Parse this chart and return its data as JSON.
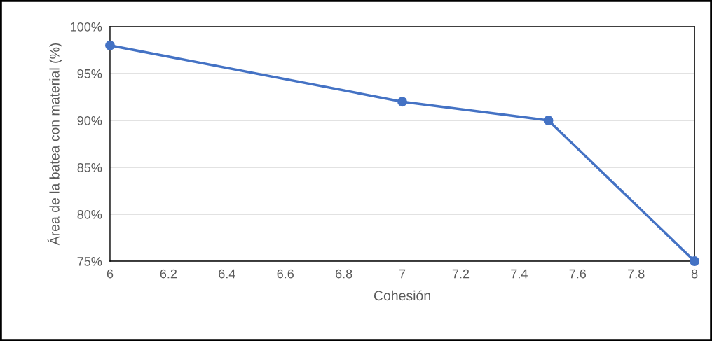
{
  "chart_data": {
    "type": "line",
    "xlabel": "Cohesión",
    "ylabel": "Área de la batea con material (%)",
    "x": [
      6,
      7,
      7.5,
      8
    ],
    "series": [
      {
        "color": "#4472c4",
        "values": [
          98,
          92,
          90,
          75
        ]
      }
    ],
    "xlim": [
      6,
      8
    ],
    "xticks": [
      6,
      6.2,
      6.4,
      6.6,
      6.8,
      7,
      7.2,
      7.4,
      7.6,
      7.8,
      8
    ],
    "ylim": [
      75,
      100
    ],
    "yticks": [
      {
        "value": 75,
        "label": "75%"
      },
      {
        "value": 80,
        "label": "80%"
      },
      {
        "value": 85,
        "label": "85%"
      },
      {
        "value": 90,
        "label": "90%"
      },
      {
        "value": 95,
        "label": "95%"
      },
      {
        "value": 100,
        "label": "100%"
      }
    ],
    "grid": "y",
    "marker": "circle",
    "line_style": "solid",
    "legend": false
  }
}
